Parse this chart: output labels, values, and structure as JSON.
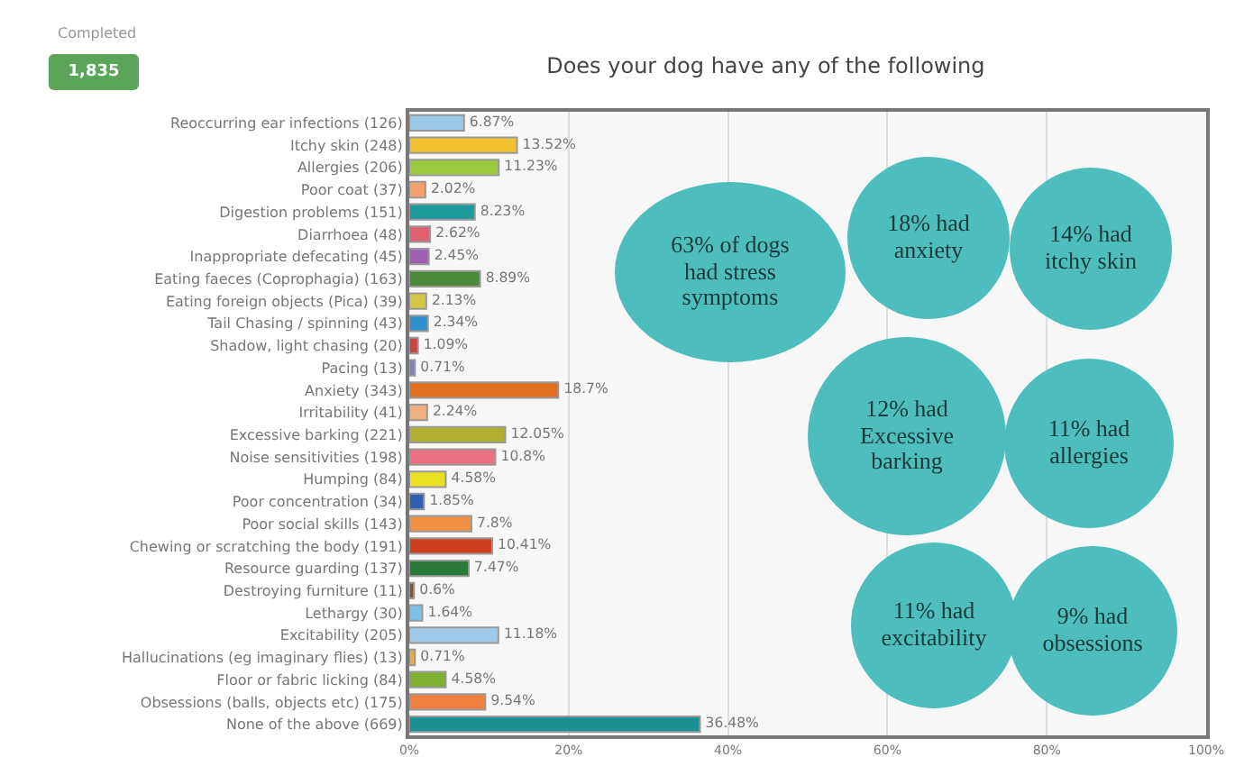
{
  "chart_data": {
    "type": "bar",
    "orientation": "horizontal",
    "title": "Does your dog have any of the following",
    "categories": [
      "Reoccurring ear infections (126)",
      "Itchy skin (248)",
      "Allergies (206)",
      "Poor coat (37)",
      "Digestion problems (151)",
      "Diarrhoea (48)",
      "Inappropriate defecating (45)",
      "Eating faeces (Coprophagia) (163)",
      "Eating foreign objects (Pica) (39)",
      "Tail Chasing / spinning (43)",
      "Shadow, light chasing (20)",
      "Pacing (13)",
      "Anxiety (343)",
      "Irritability (41)",
      "Excessive barking (221)",
      "Noise sensitivities (198)",
      "Humping (84)",
      "Poor concentration (34)",
      "Poor social skills (143)",
      "Chewing or scratching the body (191)",
      "Resource guarding (137)",
      "Destroying furniture (11)",
      "Lethargy (30)",
      "Excitability (205)",
      "Hallucinations (eg imaginary flies) (13)",
      "Floor or fabric licking (84)",
      "Obsessions (balls, objects etc) (175)",
      "None of the above (669)"
    ],
    "values": [
      6.87,
      13.52,
      11.23,
      2.02,
      8.23,
      2.62,
      2.45,
      8.89,
      2.13,
      2.34,
      1.09,
      0.71,
      18.7,
      2.24,
      12.05,
      10.8,
      4.58,
      1.85,
      7.8,
      10.41,
      7.47,
      0.6,
      1.64,
      11.18,
      0.71,
      4.58,
      9.54,
      36.48
    ],
    "value_labels": [
      "6.87%",
      "13.52%",
      "11.23%",
      "2.02%",
      "8.23%",
      "2.62%",
      "2.45%",
      "8.89%",
      "2.13%",
      "2.34%",
      "1.09%",
      "0.71%",
      "18.7%",
      "2.24%",
      "12.05%",
      "10.8%",
      "4.58%",
      "1.85%",
      "7.8%",
      "10.41%",
      "7.47%",
      "0.6%",
      "1.64%",
      "11.18%",
      "0.71%",
      "4.58%",
      "9.54%",
      "36.48%"
    ],
    "colors": [
      "#9cc8e8",
      "#f0c030",
      "#9cc840",
      "#f4a070",
      "#1a9a9a",
      "#e06070",
      "#a060b0",
      "#4a8a3a",
      "#d0c840",
      "#3090d0",
      "#d04040",
      "#8080c0",
      "#e07020",
      "#f0b080",
      "#b0b030",
      "#e87080",
      "#e8e020",
      "#3060b0",
      "#f09040",
      "#d04020",
      "#2a7a3a",
      "#8a5030",
      "#80c0e8",
      "#a0c8e8",
      "#e0b040",
      "#80b030",
      "#f08040",
      "#1a9090"
    ],
    "xlim": [
      0,
      100
    ],
    "xticks": [
      {
        "value": 0,
        "label": "0%"
      },
      {
        "value": 20,
        "label": "20%"
      },
      {
        "value": 40,
        "label": "40%"
      },
      {
        "value": 60,
        "label": "60%"
      },
      {
        "value": 80,
        "label": "80%"
      },
      {
        "value": 100,
        "label": "100%"
      }
    ],
    "grid": "x",
    "annotations": [
      "Completed",
      "1,835",
      "63% of dogs had stress symptoms",
      "18% had anxiety",
      "14% had itchy skin",
      "12% had Excessive barking",
      "11% had allergies",
      "11% had excitability",
      "9% had obsessions"
    ]
  }
}
